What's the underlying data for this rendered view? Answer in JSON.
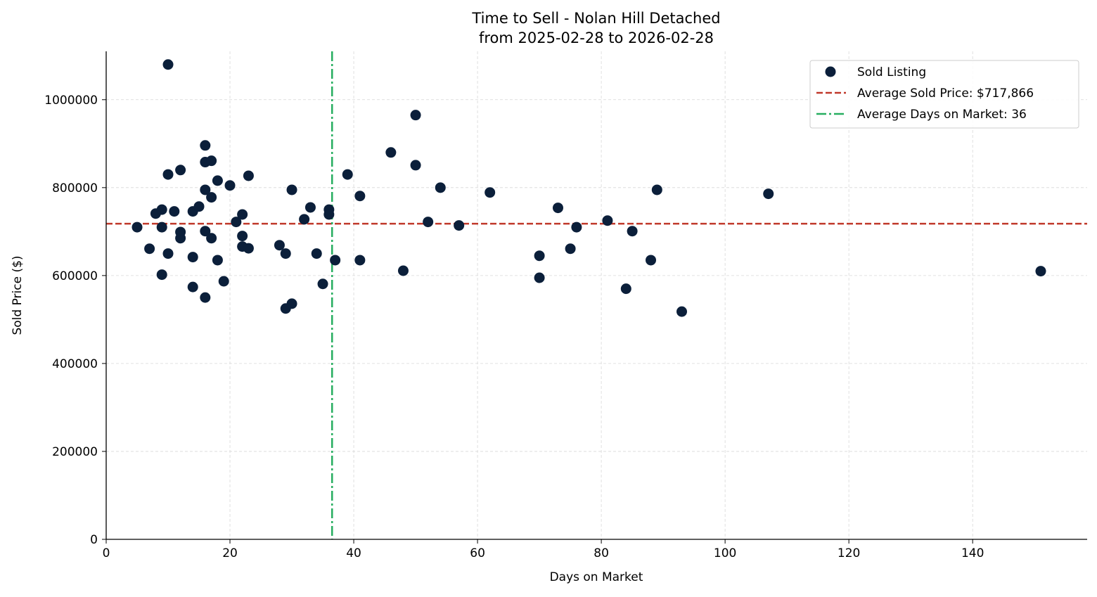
{
  "chart_data": {
    "type": "scatter",
    "title": "Time to Sell - Nolan Hill Detached",
    "subtitle": "from 2025-02-28 to 2026-02-28",
    "xlabel": "Days on Market",
    "ylabel": "Sold Price ($)",
    "xlim": [
      0,
      158.5
    ],
    "ylim": [
      0,
      1110000
    ],
    "xticks": [
      "0",
      "20",
      "40",
      "60",
      "80",
      "100",
      "120",
      "140"
    ],
    "xtick_values": [
      0,
      20,
      40,
      60,
      80,
      100,
      120,
      140
    ],
    "yticks": [
      "0",
      "200000",
      "400000",
      "600000",
      "800000",
      "1000000"
    ],
    "ytick_values": [
      0,
      200000,
      400000,
      600000,
      800000,
      1000000
    ],
    "grid": true,
    "legend_position": "top-right",
    "series": [
      {
        "name": "Sold Listing",
        "color": "#0b1f3a",
        "points": [
          [
            10,
            1080000
          ],
          [
            5,
            710000
          ],
          [
            7,
            661000
          ],
          [
            8,
            741000
          ],
          [
            9,
            750000
          ],
          [
            9,
            710000
          ],
          [
            9,
            602000
          ],
          [
            10,
            830000
          ],
          [
            10,
            650000
          ],
          [
            11,
            746000
          ],
          [
            12,
            840000
          ],
          [
            12,
            699000
          ],
          [
            12,
            685000
          ],
          [
            14,
            746000
          ],
          [
            14,
            642000
          ],
          [
            14,
            574000
          ],
          [
            15,
            757000
          ],
          [
            16,
            896000
          ],
          [
            16,
            858000
          ],
          [
            16,
            795000
          ],
          [
            16,
            701000
          ],
          [
            16,
            550000
          ],
          [
            17,
            861000
          ],
          [
            17,
            778000
          ],
          [
            17,
            685000
          ],
          [
            18,
            816000
          ],
          [
            18,
            635000
          ],
          [
            19,
            587000
          ],
          [
            20,
            805000
          ],
          [
            21,
            722000
          ],
          [
            22,
            739000
          ],
          [
            22,
            690000
          ],
          [
            22,
            666000
          ],
          [
            23,
            827000
          ],
          [
            23,
            662000
          ],
          [
            28,
            669000
          ],
          [
            29,
            650000
          ],
          [
            29,
            525000
          ],
          [
            30,
            795000
          ],
          [
            30,
            536000
          ],
          [
            32,
            728000
          ],
          [
            33,
            755000
          ],
          [
            34,
            650000
          ],
          [
            35,
            581000
          ],
          [
            36,
            750000
          ],
          [
            36,
            739000
          ],
          [
            37,
            635000
          ],
          [
            39,
            830000
          ],
          [
            41,
            781000
          ],
          [
            41,
            635000
          ],
          [
            46,
            880000
          ],
          [
            48,
            611000
          ],
          [
            50,
            965000
          ],
          [
            50,
            851000
          ],
          [
            52,
            722000
          ],
          [
            54,
            800000
          ],
          [
            57,
            714000
          ],
          [
            62,
            789000
          ],
          [
            70,
            645000
          ],
          [
            70,
            595000
          ],
          [
            73,
            754000
          ],
          [
            75,
            661000
          ],
          [
            76,
            710000
          ],
          [
            81,
            725000
          ],
          [
            84,
            570000
          ],
          [
            85,
            701000
          ],
          [
            88,
            635000
          ],
          [
            89,
            795000
          ],
          [
            93,
            518000
          ],
          [
            107,
            786000
          ],
          [
            151,
            610000
          ]
        ]
      }
    ],
    "reference_lines": [
      {
        "name": "Average Sold Price: $717,866",
        "orientation": "horizontal",
        "value": 717866,
        "style": "dashed",
        "color": "#c0392b"
      },
      {
        "name": "Average Days on Market: 36",
        "orientation": "vertical",
        "value": 36.5,
        "style": "dashdot",
        "color": "#27ae60"
      }
    ]
  }
}
